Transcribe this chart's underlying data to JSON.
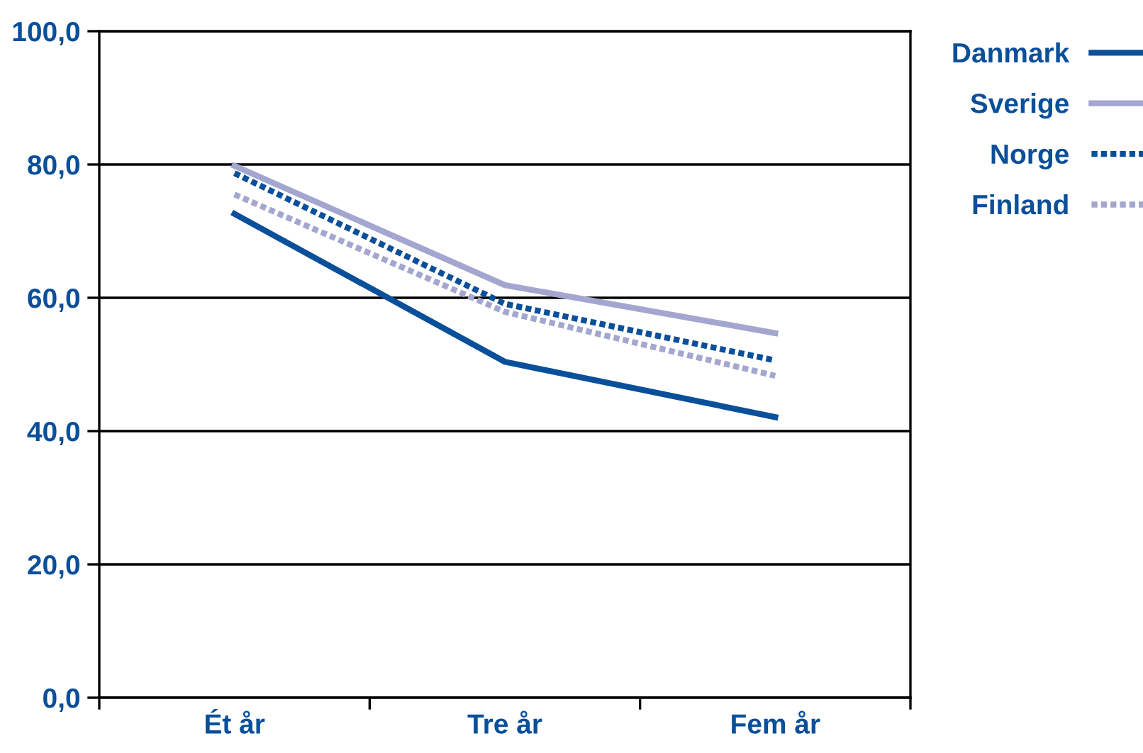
{
  "chart_data": {
    "type": "line",
    "categories": [
      "Ét år",
      "Tre år",
      "Fem år"
    ],
    "series": [
      {
        "name": "Danmark",
        "color": "#0a4f9a",
        "values": [
          72.6,
          50.4,
          42.1
        ],
        "line_style": "solid"
      },
      {
        "name": "Sverige",
        "color": "#a3a6cf",
        "values": [
          79.8,
          61.9,
          54.7
        ],
        "line_style": "solid"
      },
      {
        "name": "Norge",
        "color": "#0a4f9a",
        "values": [
          78.7,
          59.1,
          50.6
        ],
        "line_style": "dotted"
      },
      {
        "name": "Finland",
        "color": "#a3a6cf",
        "values": [
          75.5,
          57.9,
          48.3
        ],
        "line_style": "dotted"
      }
    ],
    "ylim": [
      0,
      100
    ],
    "yticks": [
      {
        "value": 0,
        "label": "0,0"
      },
      {
        "value": 20,
        "label": "20,0"
      },
      {
        "value": 40,
        "label": "40,0"
      },
      {
        "value": 60,
        "label": "60,0"
      },
      {
        "value": 80,
        "label": "80,0"
      },
      {
        "value": 100,
        "label": "100,0"
      }
    ],
    "grid": "y",
    "legend": "right",
    "marker": "none"
  }
}
